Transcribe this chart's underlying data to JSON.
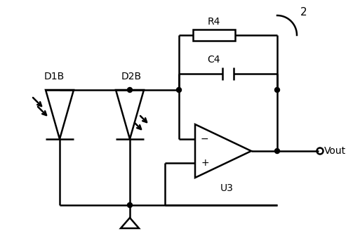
{
  "bg_color": "#ffffff",
  "line_color": "#000000",
  "line_width": 1.8,
  "fig_width": 5.13,
  "fig_height": 3.36,
  "dpi": 100,
  "labels": {
    "D1B": "D1B",
    "D2B": "D2B",
    "R4": "R4",
    "C4": "C4",
    "U3": "U3",
    "Vout": "Vout",
    "node2": "2"
  }
}
